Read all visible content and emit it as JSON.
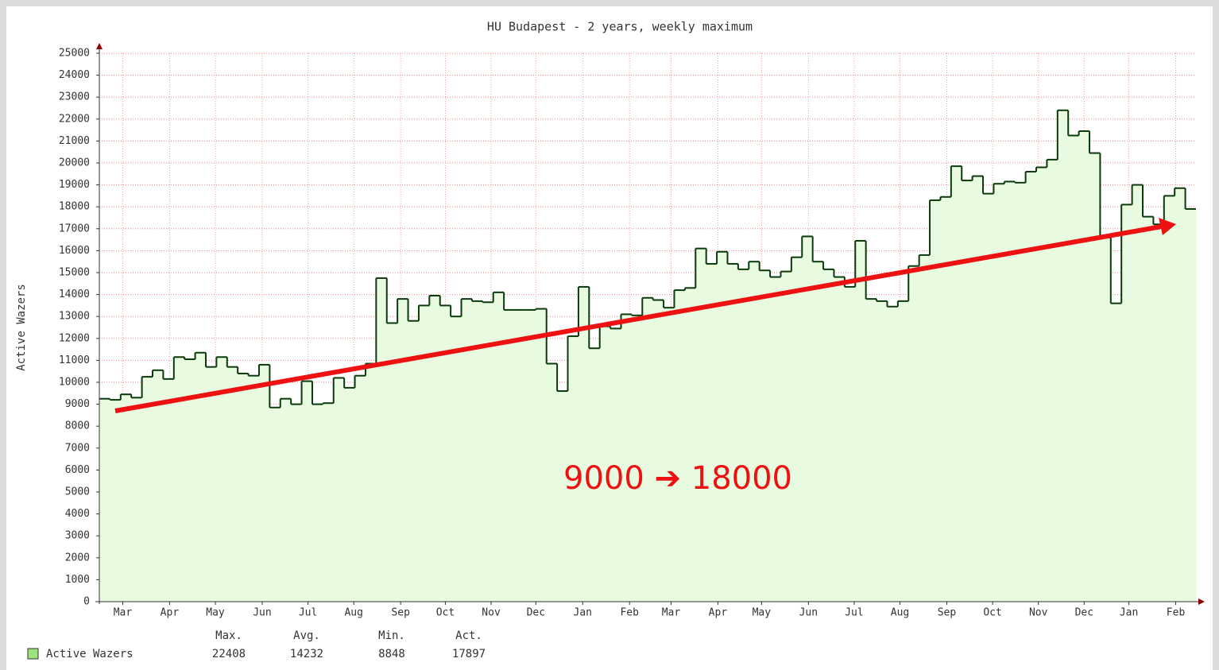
{
  "chart_data": {
    "type": "step",
    "title": "HU Budapest - 2 years, weekly maximum",
    "y_label": "Active Wazers",
    "annotation": "9000 ➔ 18000",
    "series": [
      {
        "name": "Active Wazers",
        "color": "#0a3a0a",
        "fill": "#e8fbe0",
        "values": [
          9250,
          9200,
          9450,
          9300,
          10250,
          10550,
          10150,
          11150,
          11050,
          11350,
          10700,
          11150,
          10700,
          10400,
          10300,
          10800,
          8850,
          9250,
          9000,
          10050,
          9000,
          9050,
          10200,
          9750,
          10300,
          10850,
          14750,
          12700,
          13800,
          12800,
          13500,
          13950,
          13500,
          13000,
          13800,
          13700,
          13650,
          14100,
          13300,
          13300,
          13300,
          13350,
          10850,
          9600,
          12100,
          14350,
          11550,
          12550,
          12450,
          13100,
          13050,
          13850,
          13750,
          13400,
          14200,
          14300,
          16100,
          15400,
          15950,
          15400,
          15150,
          15500,
          15100,
          14800,
          15050,
          15700,
          16650,
          15500,
          15150,
          14800,
          14350,
          16450,
          13800,
          13700,
          13450,
          13700,
          15300,
          15800,
          18300,
          18450,
          19850,
          19200,
          19400,
          18600,
          19050,
          19150,
          19100,
          19600,
          19800,
          20150,
          22400,
          21250,
          21450,
          20450,
          16600,
          13600,
          18100,
          19000,
          17550,
          17200,
          18500,
          18850,
          17900
        ]
      }
    ],
    "ylim": [
      0,
      25000
    ],
    "yticks": [
      0,
      1000,
      2000,
      3000,
      4000,
      5000,
      6000,
      7000,
      8000,
      9000,
      10000,
      11000,
      12000,
      13000,
      14000,
      15000,
      16000,
      17000,
      18000,
      19000,
      20000,
      21000,
      22000,
      23000,
      24000,
      25000
    ],
    "xlim": [
      0,
      103
    ],
    "xticks": [
      {
        "value": 2.2,
        "label": "Mar"
      },
      {
        "value": 6.6,
        "label": "Apr"
      },
      {
        "value": 10.9,
        "label": "May"
      },
      {
        "value": 15.3,
        "label": "Jun"
      },
      {
        "value": 19.6,
        "label": "Jul"
      },
      {
        "value": 23.9,
        "label": "Aug"
      },
      {
        "value": 28.3,
        "label": "Sep"
      },
      {
        "value": 32.5,
        "label": "Oct"
      },
      {
        "value": 36.8,
        "label": "Nov"
      },
      {
        "value": 41.0,
        "label": "Dec"
      },
      {
        "value": 45.4,
        "label": "Jan"
      },
      {
        "value": 49.8,
        "label": "Feb"
      },
      {
        "value": 53.7,
        "label": "Mar"
      },
      {
        "value": 58.1,
        "label": "Apr"
      },
      {
        "value": 62.2,
        "label": "May"
      },
      {
        "value": 66.6,
        "label": "Jun"
      },
      {
        "value": 70.9,
        "label": "Jul"
      },
      {
        "value": 75.2,
        "label": "Aug"
      },
      {
        "value": 79.6,
        "label": "Sep"
      },
      {
        "value": 83.9,
        "label": "Oct"
      },
      {
        "value": 88.2,
        "label": "Nov"
      },
      {
        "value": 92.5,
        "label": "Dec"
      },
      {
        "value": 96.7,
        "label": "Jan"
      },
      {
        "value": 101.1,
        "label": "Feb"
      }
    ],
    "grid": true,
    "legend_stats": {
      "headers": [
        "Max.",
        "Avg.",
        "Min.",
        "Act."
      ],
      "values": [
        22408,
        14232,
        8848,
        17897
      ]
    }
  }
}
